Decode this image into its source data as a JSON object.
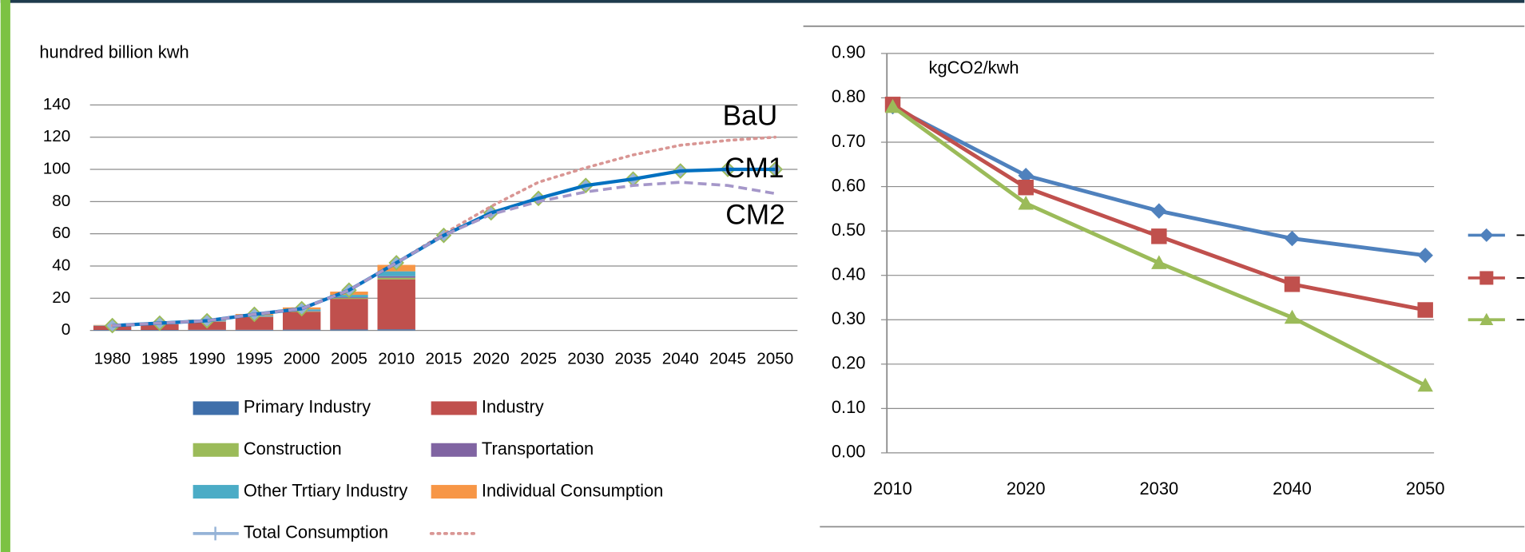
{
  "chart_data": [
    {
      "type": "bar",
      "y_label": "hundred  billion kwh",
      "categories": [
        "1980",
        "1985",
        "1990",
        "1995",
        "2000",
        "2005",
        "2010",
        "2015",
        "2020",
        "2025",
        "2030",
        "2035",
        "2040",
        "2045",
        "2050"
      ],
      "ylim": [
        0,
        140
      ],
      "yticks": [
        0,
        20,
        40,
        60,
        80,
        100,
        120,
        140
      ],
      "grid": true,
      "series": [
        {
          "name": "Primary Industry",
          "color": "#3f6faa",
          "values": [
            0.3,
            0.3,
            0.4,
            0.4,
            0.5,
            0.6,
            0.7,
            null,
            null,
            null,
            null,
            null,
            null,
            null,
            null
          ]
        },
        {
          "name": "Industry",
          "color": "#c0504d",
          "values": [
            2.5,
            3.5,
            5,
            8,
            11,
            19,
            31,
            null,
            null,
            null,
            null,
            null,
            null,
            null,
            null
          ]
        },
        {
          "name": "Construction",
          "color": "#9bbb59",
          "values": [
            0.1,
            0.1,
            0.2,
            0.2,
            0.3,
            0.5,
            1,
            null,
            null,
            null,
            null,
            null,
            null,
            null,
            null
          ]
        },
        {
          "name": "Transportation",
          "color": "#8064a2",
          "values": [
            0.1,
            0.1,
            0.2,
            0.2,
            0.3,
            0.5,
            1,
            null,
            null,
            null,
            null,
            null,
            null,
            null,
            null
          ]
        },
        {
          "name": "Other Trtiary Industry",
          "color": "#4bacc6",
          "values": [
            0.2,
            0.3,
            0.4,
            0.6,
            1,
            1.5,
            3,
            null,
            null,
            null,
            null,
            null,
            null,
            null,
            null
          ]
        },
        {
          "name": "Individual Consumption",
          "color": "#f79646",
          "values": [
            0.2,
            0.3,
            0.5,
            0.8,
            1.2,
            2,
            4,
            null,
            null,
            null,
            null,
            null,
            null,
            null,
            null
          ]
        }
      ],
      "lines": [
        {
          "name": "Total Consumption",
          "color": "#95b3d7",
          "style": "solid",
          "marker": "diamond",
          "values": [
            3,
            4.5,
            6,
            10,
            13.5,
            25,
            42,
            59,
            73,
            82,
            90,
            94,
            99,
            100,
            100
          ]
        },
        {
          "color": "#d99694",
          "style": "dotted",
          "values": [
            3,
            4.5,
            6,
            10,
            13.5,
            25,
            42,
            60,
            77,
            92,
            101,
            109,
            115,
            118,
            120
          ]
        },
        {
          "color": "#0070c0",
          "style": "solid",
          "values": [
            3,
            4.5,
            6,
            10,
            13.5,
            25,
            42,
            59,
            73,
            82,
            90,
            94,
            99,
            100,
            100
          ]
        },
        {
          "color": "#a597c9",
          "style": "dashed",
          "values": [
            3,
            4.5,
            6,
            10,
            13.5,
            25,
            42,
            59,
            72,
            80,
            86,
            90,
            92,
            90,
            85
          ]
        }
      ],
      "annotations": [
        {
          "text": "BaU"
        },
        {
          "text": "CM1"
        },
        {
          "text": "CM2"
        }
      ]
    },
    {
      "type": "line",
      "y_label": "kgCO2/kwh",
      "categories": [
        "2010",
        "2020",
        "2030",
        "2040",
        "2050"
      ],
      "ylim": [
        0,
        0.9
      ],
      "yticks": [
        {
          "value": 0,
          "label": "0.00"
        },
        {
          "value": 0.1,
          "label": "0.10"
        },
        {
          "value": 0.2,
          "label": "0.20"
        },
        {
          "value": 0.3,
          "label": "0.30"
        },
        {
          "value": 0.4,
          "label": "0.40"
        },
        {
          "value": 0.5,
          "label": "0.50"
        },
        {
          "value": 0.6,
          "label": "0.60"
        },
        {
          "value": 0.7,
          "label": "0.70"
        },
        {
          "value": 0.8,
          "label": "0.80"
        },
        {
          "value": 0.9,
          "label": "0.90"
        }
      ],
      "grid": true,
      "series": [
        {
          "color": "#4f81bd",
          "marker": "diamond",
          "values": [
            0.78,
            0.625,
            0.545,
            0.483,
            0.445
          ]
        },
        {
          "color": "#c0504d",
          "marker": "square",
          "values": [
            0.785,
            0.598,
            0.488,
            0.38,
            0.322
          ]
        },
        {
          "color": "#9bbb59",
          "marker": "triangle",
          "values": [
            0.78,
            0.562,
            0.428,
            0.305,
            0.152
          ]
        }
      ]
    }
  ]
}
